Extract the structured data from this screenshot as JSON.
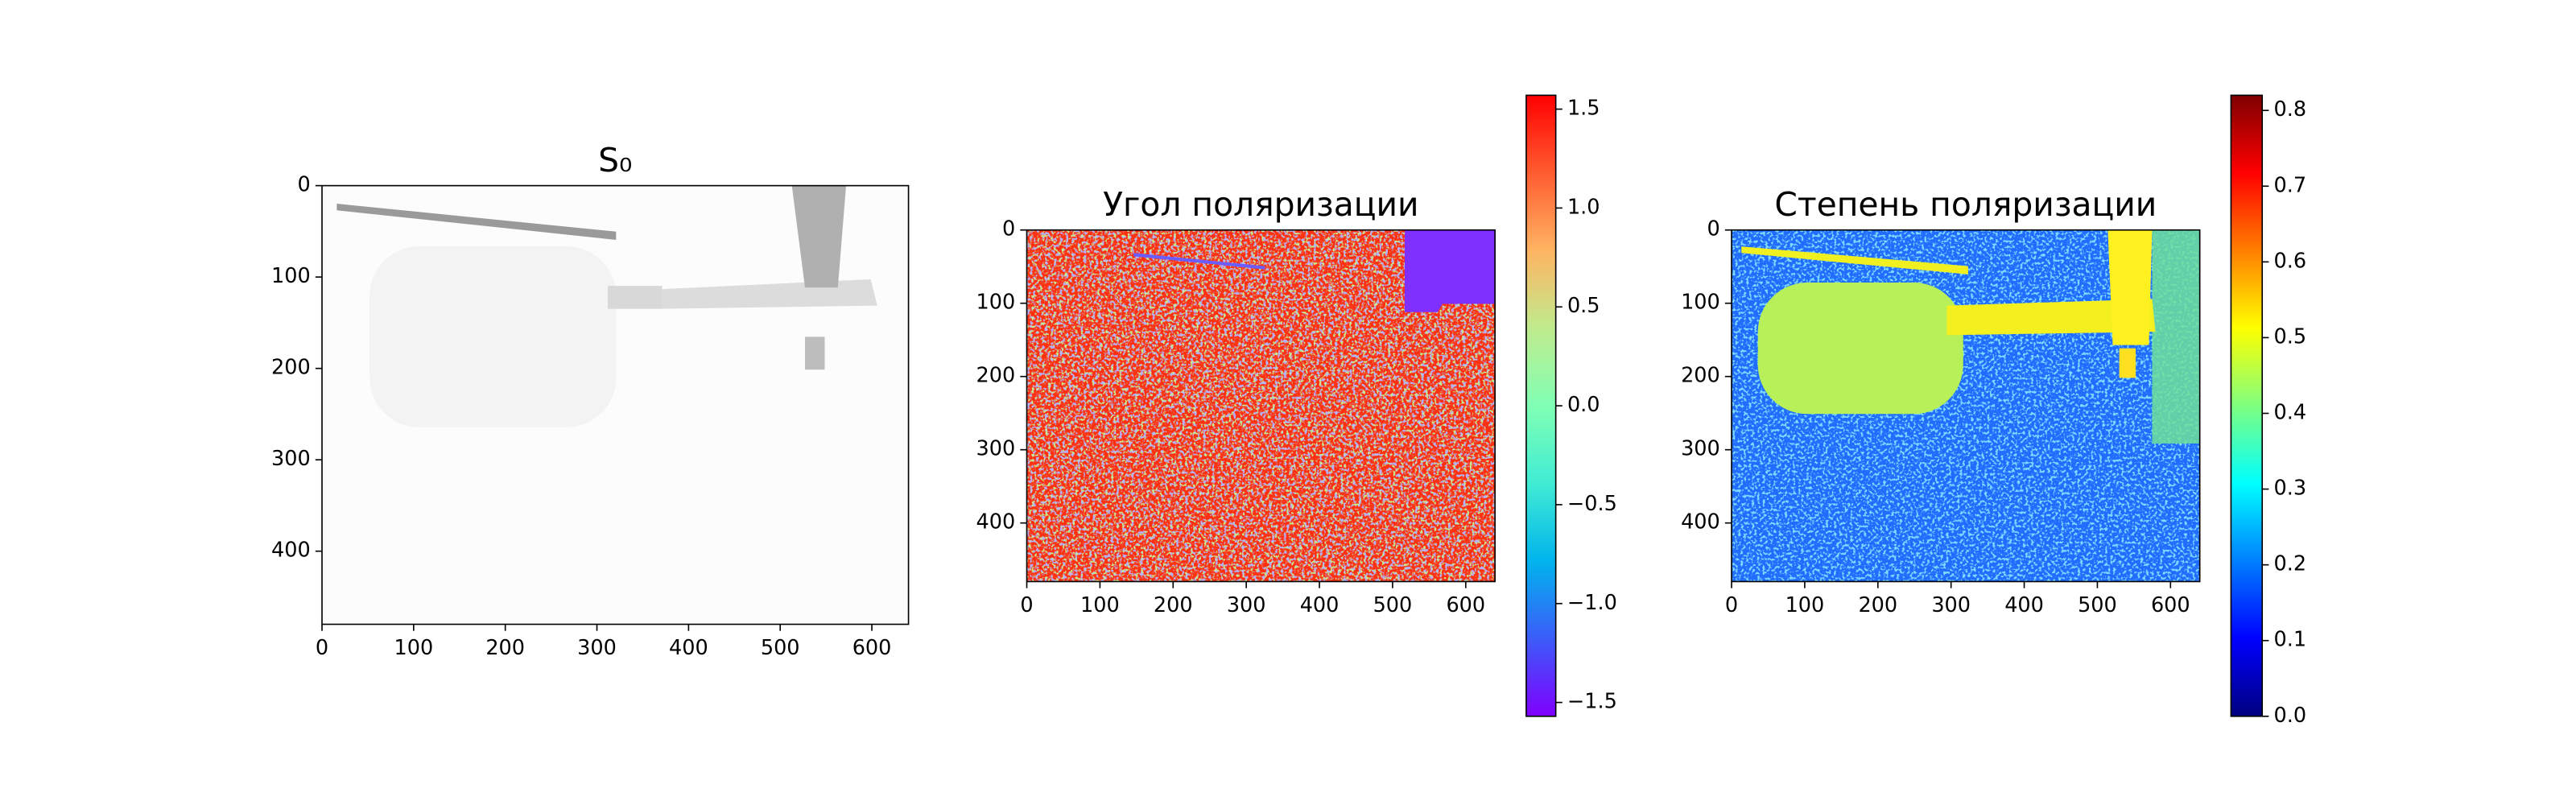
{
  "chart_data": [
    {
      "type": "heatmap",
      "title": "S₀",
      "cmap": "gray",
      "xlim": [
        0,
        640
      ],
      "xticks": [
        0,
        100,
        200,
        300,
        400,
        500,
        600
      ],
      "ylim": [
        480,
        0
      ],
      "yticks": [
        0,
        100,
        200,
        300,
        400
      ]
    },
    {
      "type": "heatmap",
      "title": "Угол поляризации",
      "cmap": "rainbow",
      "xlim": [
        0,
        640
      ],
      "xticks": [
        0,
        100,
        200,
        300,
        400,
        500,
        600
      ],
      "ylim": [
        480,
        0
      ],
      "yticks": [
        0,
        100,
        200,
        300,
        400
      ],
      "colorbar": {
        "clim": [
          -1.57,
          1.57
        ],
        "ticks": [
          {
            "value": -1.5,
            "label": "−1.5"
          },
          {
            "value": -1.0,
            "label": "−1.0"
          },
          {
            "value": -0.5,
            "label": "−0.5"
          },
          {
            "value": 0.0,
            "label": "0.0"
          },
          0.5,
          {
            "value": 1.0,
            "label": "1.0"
          },
          1.5
        ]
      }
    },
    {
      "type": "heatmap",
      "title": "Степень поляризации",
      "cmap": "jet",
      "xlim": [
        0,
        640
      ],
      "xticks": [
        0,
        100,
        200,
        300,
        400,
        500,
        600
      ],
      "ylim": [
        480,
        0
      ],
      "yticks": [
        0,
        100,
        200,
        300,
        400
      ],
      "colorbar": {
        "clim": [
          0,
          0.82
        ],
        "ticks": [
          {
            "value": 0.0,
            "label": "0.0"
          },
          0.1,
          0.2,
          0.3,
          0.4,
          0.5,
          0.6,
          0.7,
          0.8
        ]
      }
    }
  ]
}
